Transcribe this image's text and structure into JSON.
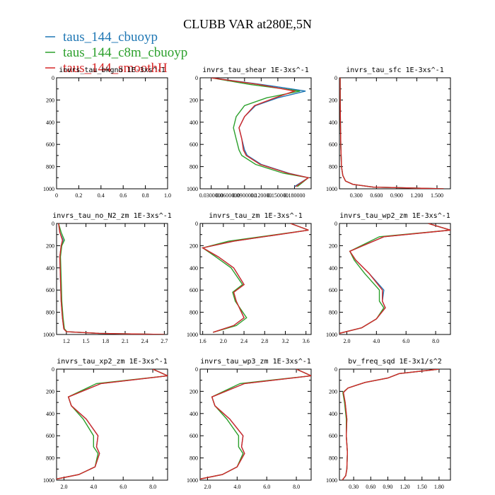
{
  "title": "CLUBB VAR at280E,5N",
  "legend": [
    {
      "label": "taus_144_cbuoyp",
      "color": "#1f77b4"
    },
    {
      "label": "taus_144_c8m_cbuoyp",
      "color": "#2ca02c"
    },
    {
      "label": "taus_144_smoothH",
      "color": "#d62728"
    }
  ],
  "chart_data": [
    {
      "type": "line",
      "title": "invrs_tau_bkgnd  1E-3xs^-1",
      "xlim": [
        0,
        1.0
      ],
      "ylim": [
        1000,
        0
      ],
      "xticks": [
        "0",
        "0.2",
        "0.4",
        "0.6",
        "0.8",
        "1.0"
      ],
      "xtick_values": [
        0,
        0.2,
        0.4,
        0.6,
        0.8,
        1.0
      ],
      "yticks": [
        "0",
        "200",
        "400",
        "600",
        "800",
        "1000"
      ],
      "series": []
    },
    {
      "type": "line",
      "title": "invrs_tau_shear  1E-3xs^-1",
      "xlim": [
        0.01,
        0.21
      ],
      "ylim": [
        1000,
        0
      ],
      "xticks": [
        "0.0300000",
        "0.0600000",
        "0.0900000",
        "0.120000",
        "0.150000",
        "0.180000"
      ],
      "xtick_values": [
        0.03,
        0.06,
        0.09,
        0.12,
        0.15,
        0.18
      ],
      "yticks": [
        "0",
        "200",
        "400",
        "600",
        "800",
        "1000"
      ],
      "series": [
        {
          "name": "taus_144_cbuoyp",
          "x": [
            0.03,
            0.12,
            0.2,
            0.15,
            0.11,
            0.09,
            0.08,
            0.085,
            0.09,
            0.095,
            0.12,
            0.17,
            0.205,
            0.18
          ],
          "y": [
            0,
            60,
            120,
            180,
            250,
            350,
            450,
            550,
            650,
            700,
            780,
            860,
            900,
            980
          ]
        },
        {
          "name": "taus_144_c8m_cbuoyp",
          "x": [
            0.03,
            0.1,
            0.19,
            0.13,
            0.09,
            0.075,
            0.07,
            0.075,
            0.08,
            0.085,
            0.11,
            0.16,
            0.205,
            0.185
          ],
          "y": [
            0,
            60,
            120,
            180,
            250,
            350,
            450,
            550,
            650,
            700,
            780,
            860,
            900,
            980
          ]
        },
        {
          "name": "taus_144_smoothH",
          "x": [
            0.03,
            0.115,
            0.18,
            0.145,
            0.108,
            0.09,
            0.08,
            0.085,
            0.088,
            0.093,
            0.118,
            0.168,
            0.205,
            0.182
          ],
          "y": [
            0,
            60,
            120,
            180,
            250,
            350,
            450,
            550,
            650,
            700,
            780,
            860,
            900,
            980
          ]
        }
      ]
    },
    {
      "type": "line",
      "title": "invrs_tau_sfc  1E-3xs^-1",
      "xlim": [
        0.05,
        1.7
      ],
      "ylim": [
        1000,
        0
      ],
      "xticks": [
        "0.300",
        "0.600",
        "0.900",
        "1.200",
        "1.500"
      ],
      "xtick_values": [
        0.3,
        0.6,
        0.9,
        1.2,
        1.5
      ],
      "yticks": [
        "0",
        "200",
        "400",
        "600",
        "800",
        "1000"
      ],
      "series": [
        {
          "name": "taus_144_cbuoyp",
          "x": [
            0.06,
            0.062,
            0.065,
            0.07,
            0.08,
            0.1,
            0.14,
            0.25,
            0.55,
            1.6
          ],
          "y": [
            0,
            200,
            400,
            600,
            800,
            880,
            930,
            960,
            985,
            1000
          ]
        },
        {
          "name": "taus_144_c8m_cbuoyp",
          "x": [
            0.06,
            0.062,
            0.065,
            0.07,
            0.08,
            0.1,
            0.14,
            0.25,
            0.55,
            1.6
          ],
          "y": [
            0,
            200,
            400,
            600,
            800,
            880,
            930,
            960,
            985,
            1000
          ]
        },
        {
          "name": "taus_144_smoothH",
          "x": [
            0.06,
            0.062,
            0.065,
            0.07,
            0.08,
            0.1,
            0.14,
            0.25,
            0.55,
            1.6
          ],
          "y": [
            0,
            200,
            400,
            600,
            800,
            880,
            930,
            960,
            985,
            1000
          ]
        }
      ]
    },
    {
      "type": "line",
      "title": "invrs_tau_no_N2_zm  1E-3xs^-1",
      "xlim": [
        1.05,
        2.75
      ],
      "ylim": [
        1000,
        0
      ],
      "xticks": [
        "1.2",
        "1.5",
        "1.8",
        "2.1",
        "2.4",
        "2.7"
      ],
      "xtick_values": [
        1.2,
        1.5,
        1.8,
        2.1,
        2.4,
        2.7
      ],
      "yticks": [
        "0",
        "200",
        "400",
        "600",
        "800",
        "1000"
      ],
      "series": [
        {
          "name": "taus_144_cbuoyp",
          "x": [
            1.08,
            1.1,
            1.15,
            1.12,
            1.1,
            1.11,
            1.12,
            1.14,
            1.16,
            1.2,
            1.7,
            2.7
          ],
          "y": [
            0,
            80,
            150,
            200,
            300,
            500,
            700,
            850,
            950,
            975,
            990,
            1000
          ]
        },
        {
          "name": "taus_144_c8m_cbuoyp",
          "x": [
            1.08,
            1.12,
            1.17,
            1.13,
            1.11,
            1.12,
            1.13,
            1.15,
            1.17,
            1.21,
            1.7,
            2.7
          ],
          "y": [
            0,
            80,
            150,
            200,
            300,
            500,
            700,
            850,
            950,
            975,
            990,
            1000
          ]
        },
        {
          "name": "taus_144_smoothH",
          "x": [
            1.08,
            1.1,
            1.14,
            1.12,
            1.1,
            1.11,
            1.12,
            1.14,
            1.16,
            1.2,
            1.7,
            2.7
          ],
          "y": [
            0,
            80,
            150,
            200,
            300,
            500,
            700,
            850,
            950,
            975,
            990,
            1000
          ]
        }
      ]
    },
    {
      "type": "line",
      "title": "invrs_tau_zm  1E-3xs^-1",
      "xlim": [
        1.55,
        3.7
      ],
      "ylim": [
        1000,
        0
      ],
      "xticks": [
        "1.6",
        "2.0",
        "2.4",
        "2.8",
        "3.2",
        "3.6"
      ],
      "xtick_values": [
        1.6,
        2.0,
        2.4,
        2.8,
        3.2,
        3.6
      ],
      "yticks": [
        "0",
        "200",
        "400",
        "600",
        "800",
        "1000"
      ],
      "series": [
        {
          "name": "taus_144_cbuoyp",
          "x": [
            3.3,
            3.65,
            2.2,
            1.6,
            1.9,
            2.2,
            2.4,
            2.2,
            2.25,
            2.4,
            2.2,
            1.8
          ],
          "y": [
            0,
            60,
            160,
            220,
            300,
            400,
            550,
            620,
            700,
            850,
            920,
            980
          ]
        },
        {
          "name": "taus_144_c8m_cbuoyp",
          "x": [
            3.3,
            3.65,
            2.1,
            1.6,
            1.85,
            2.15,
            2.37,
            2.18,
            2.23,
            2.45,
            2.25,
            1.8
          ],
          "y": [
            0,
            60,
            160,
            220,
            300,
            400,
            550,
            620,
            700,
            850,
            920,
            980
          ]
        },
        {
          "name": "taus_144_smoothH",
          "x": [
            3.3,
            3.65,
            2.2,
            1.6,
            1.9,
            2.2,
            2.4,
            2.2,
            2.25,
            2.4,
            2.2,
            1.8
          ],
          "y": [
            0,
            60,
            160,
            220,
            300,
            400,
            550,
            620,
            700,
            850,
            920,
            980
          ]
        }
      ]
    },
    {
      "type": "line",
      "title": "invrs_tau_wp2_zm  1E-3xs^-1",
      "xlim": [
        1.5,
        9.0
      ],
      "ylim": [
        1000,
        0
      ],
      "xticks": [
        "2.0",
        "4.0",
        "6.0",
        "8.0"
      ],
      "xtick_values": [
        2.0,
        4.0,
        6.0,
        8.0
      ],
      "yticks": [
        "0",
        "200",
        "400",
        "600",
        "800",
        "1000"
      ],
      "series": [
        {
          "name": "taus_144_cbuoyp",
          "x": [
            7.5,
            9.0,
            4.5,
            2.2,
            2.6,
            3.5,
            4.5,
            4.4,
            4.6,
            4.0,
            3.0,
            1.5
          ],
          "y": [
            0,
            60,
            120,
            250,
            330,
            450,
            600,
            700,
            760,
            860,
            940,
            990
          ]
        },
        {
          "name": "taus_144_c8m_cbuoyp",
          "x": [
            7.5,
            9.0,
            4.2,
            2.2,
            2.5,
            3.2,
            4.2,
            4.2,
            4.5,
            4.0,
            3.0,
            1.5
          ],
          "y": [
            0,
            60,
            120,
            250,
            330,
            450,
            600,
            700,
            760,
            860,
            940,
            990
          ]
        },
        {
          "name": "taus_144_smoothH",
          "x": [
            7.5,
            9.0,
            4.5,
            2.2,
            2.6,
            3.5,
            4.4,
            4.4,
            4.6,
            4.0,
            3.0,
            1.5
          ],
          "y": [
            0,
            60,
            120,
            250,
            330,
            450,
            600,
            700,
            760,
            860,
            940,
            990
          ]
        }
      ]
    },
    {
      "type": "line",
      "title": "invrs_tau_xp2_zm  1E-3xs^-1",
      "xlim": [
        1.5,
        9.0
      ],
      "ylim": [
        1000,
        0
      ],
      "xticks": [
        "2.0",
        "4.0",
        "6.0",
        "8.0"
      ],
      "xtick_values": [
        2.0,
        4.0,
        6.0,
        8.0
      ],
      "yticks": [
        "0",
        "200",
        "400",
        "600",
        "800",
        "1000"
      ],
      "series": [
        {
          "name": "taus_144_cbuoyp",
          "x": [
            8.0,
            9.0,
            4.5,
            2.3,
            2.5,
            3.5,
            4.3,
            4.2,
            4.4,
            4.1,
            3.0,
            1.5
          ],
          "y": [
            0,
            60,
            130,
            250,
            330,
            450,
            600,
            700,
            760,
            880,
            950,
            990
          ]
        },
        {
          "name": "taus_144_c8m_cbuoyp",
          "x": [
            8.0,
            9.0,
            4.2,
            2.3,
            2.5,
            3.3,
            4.0,
            4.0,
            4.3,
            4.1,
            3.0,
            1.5
          ],
          "y": [
            0,
            60,
            130,
            250,
            330,
            450,
            600,
            700,
            760,
            880,
            950,
            990
          ]
        },
        {
          "name": "taus_144_smoothH",
          "x": [
            8.0,
            9.0,
            4.5,
            2.3,
            2.5,
            3.5,
            4.3,
            4.2,
            4.4,
            4.1,
            3.0,
            1.5
          ],
          "y": [
            0,
            60,
            130,
            250,
            330,
            450,
            600,
            700,
            760,
            880,
            950,
            990
          ]
        }
      ]
    },
    {
      "type": "line",
      "title": "invrs_tau_wp3_zm  1E-3xs^-1",
      "xlim": [
        1.5,
        9.0
      ],
      "ylim": [
        1000,
        0
      ],
      "xticks": [
        "2.0",
        "4.0",
        "6.0",
        "8.0"
      ],
      "xtick_values": [
        2.0,
        4.0,
        6.0,
        8.0
      ],
      "yticks": [
        "0",
        "200",
        "400",
        "600",
        "800",
        "1000"
      ],
      "series": [
        {
          "name": "taus_144_cbuoyp",
          "x": [
            8.0,
            9.0,
            4.5,
            2.3,
            2.5,
            3.5,
            4.4,
            4.3,
            4.5,
            4.0,
            3.0,
            1.5
          ],
          "y": [
            0,
            60,
            130,
            250,
            330,
            450,
            600,
            700,
            760,
            880,
            950,
            990
          ]
        },
        {
          "name": "taus_144_c8m_cbuoyp",
          "x": [
            8.0,
            9.0,
            4.2,
            2.3,
            2.5,
            3.3,
            4.1,
            4.1,
            4.4,
            4.0,
            3.0,
            1.5
          ],
          "y": [
            0,
            60,
            130,
            250,
            330,
            450,
            600,
            700,
            760,
            880,
            950,
            990
          ]
        },
        {
          "name": "taus_144_smoothH",
          "x": [
            8.0,
            9.0,
            4.5,
            2.3,
            2.5,
            3.5,
            4.4,
            4.3,
            4.5,
            4.0,
            3.0,
            1.5
          ],
          "y": [
            0,
            60,
            130,
            250,
            330,
            450,
            600,
            700,
            760,
            880,
            950,
            990
          ]
        }
      ]
    },
    {
      "type": "line",
      "title": "bv_freq_sqd  1E-3x1/s^2",
      "xlim": [
        0.05,
        2.0
      ],
      "ylim": [
        1000,
        0
      ],
      "xticks": [
        "0.30",
        "0.60",
        "0.90",
        "1.20",
        "1.50",
        "1.80"
      ],
      "xtick_values": [
        0.3,
        0.6,
        0.9,
        1.2,
        1.5,
        1.8
      ],
      "yticks": [
        "0",
        "200",
        "400",
        "600",
        "800",
        "1000"
      ],
      "series": [
        {
          "name": "taus_144_cbuoyp",
          "x": [
            1.8,
            1.1,
            0.9,
            0.5,
            0.2,
            0.12,
            0.15,
            0.18,
            0.17,
            0.19,
            0.18,
            0.16,
            0.1
          ],
          "y": [
            0,
            40,
            80,
            120,
            170,
            210,
            300,
            450,
            600,
            750,
            900,
            960,
            1000
          ]
        },
        {
          "name": "taus_144_c8m_cbuoyp",
          "x": [
            1.8,
            1.1,
            0.9,
            0.5,
            0.2,
            0.11,
            0.14,
            0.17,
            0.17,
            0.19,
            0.18,
            0.16,
            0.1
          ],
          "y": [
            0,
            40,
            80,
            120,
            170,
            210,
            300,
            450,
            600,
            750,
            900,
            960,
            1000
          ]
        },
        {
          "name": "taus_144_smoothH",
          "x": [
            1.8,
            1.1,
            0.9,
            0.5,
            0.2,
            0.12,
            0.15,
            0.18,
            0.17,
            0.19,
            0.18,
            0.16,
            0.1
          ],
          "y": [
            0,
            40,
            80,
            120,
            170,
            210,
            300,
            450,
            600,
            750,
            900,
            960,
            1000
          ]
        }
      ]
    }
  ]
}
